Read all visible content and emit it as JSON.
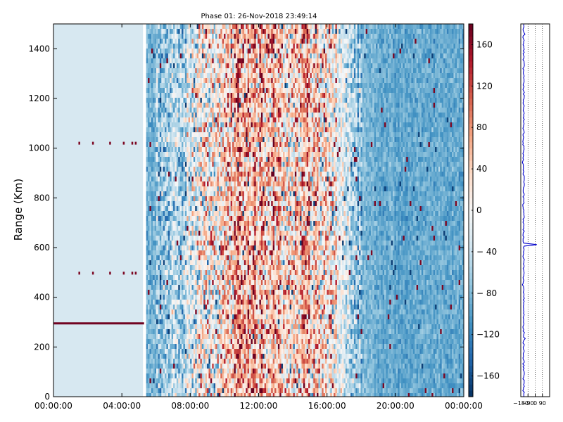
{
  "chart_data": [
    {
      "type": "heatmap",
      "title": "Phase 01: 26-Nov-2018 23:49:14",
      "xlabel": "",
      "ylabel": "Range (Km)",
      "x_tick_labels": [
        "00:00:00",
        "04:00:00",
        "08:00:00",
        "12:00:00",
        "16:00:00",
        "20:00:00",
        "00:00:00"
      ],
      "x_tick_hours": [
        0,
        4,
        8,
        12,
        16,
        20,
        24
      ],
      "xlim_hours": [
        0,
        24
      ],
      "ylim": [
        0,
        1500
      ],
      "y_ticks": [
        0,
        200,
        400,
        600,
        800,
        1000,
        1200,
        1400
      ],
      "colorbar": {
        "colormap": "RdBu_r",
        "range": [
          -180,
          180
        ],
        "tick_values": [
          160,
          120,
          80,
          40,
          0,
          -40,
          -80,
          -120,
          -160
        ],
        "tick_labels": [
          "160",
          "120",
          "80",
          "40",
          "0",
          "− 40",
          "− 80",
          "−120",
          "−160"
        ]
      },
      "phase_by_time": {
        "hours": [
          0,
          5.2,
          5.5,
          6,
          7,
          8,
          9,
          10,
          11,
          12,
          13,
          14,
          15,
          16,
          17,
          17.5,
          18,
          19,
          20,
          21,
          22,
          23,
          24
        ],
        "phase_deg": [
          -30,
          -30,
          -90,
          -75,
          -55,
          -20,
          20,
          45,
          65,
          55,
          45,
          35,
          40,
          10,
          -30,
          -65,
          -80,
          -90,
          -95,
          -95,
          -95,
          -92,
          -90
        ]
      },
      "constant_region_hours": [
        0,
        5.3
      ],
      "constant_region_phase": -30,
      "gap_hour": 5.3,
      "features": [
        {
          "kind": "line",
          "range_km": 295,
          "hours": [
            0,
            5.3
          ],
          "phase_deg": 175
        },
        {
          "kind": "dots",
          "range_km": 1020,
          "hours": [
            1.5,
            2.3,
            3.3,
            4.1,
            4.6,
            4.8
          ],
          "phase_deg": 170
        },
        {
          "kind": "dots",
          "range_km": 497,
          "hours": [
            1.5,
            2.3,
            3.3,
            4.1,
            4.6,
            4.8
          ],
          "phase_deg": 170
        }
      ]
    },
    {
      "type": "line",
      "title": "",
      "xlim": [
        -180,
        180
      ],
      "ylim": [
        0,
        1500
      ],
      "x_tick_labels": [
        "−180",
        "−90",
        "0",
        "90"
      ],
      "x_ticks": [
        -180,
        -90,
        0,
        90
      ],
      "gridlines_x": [
        -90,
        0,
        90
      ],
      "profile_x_deg": -145,
      "profile_spikes": [
        {
          "range_km": 1460,
          "x_deg": -128
        },
        {
          "range_km": 940,
          "x_deg": -160
        },
        {
          "range_km": 610,
          "x_deg": 20
        },
        {
          "range_km": 450,
          "x_deg": -160
        },
        {
          "range_km": 235,
          "x_deg": -125
        },
        {
          "range_km": 130,
          "x_deg": -155
        }
      ]
    }
  ]
}
